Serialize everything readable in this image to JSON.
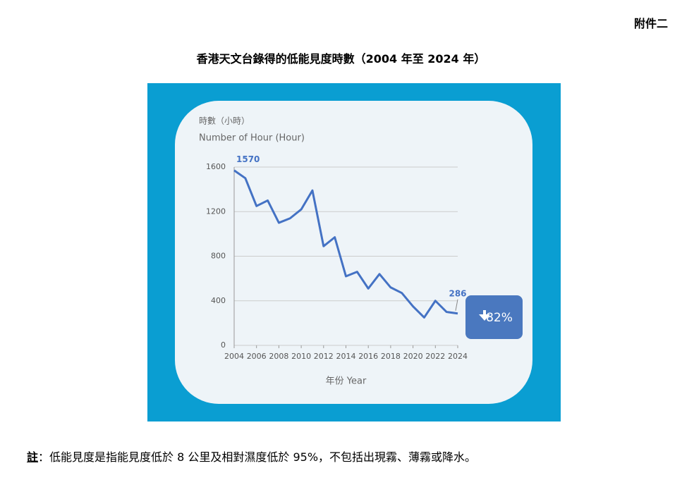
{
  "header": {
    "label": "附件二"
  },
  "title": "香港天文台錄得的低能見度時數（2004 年至 2024 年）",
  "chart_data": {
    "type": "line",
    "y_label_lines": [
      "時數（小時）",
      "Number of Hour (Hour)"
    ],
    "x_label": "年份 Year",
    "x": [
      2004,
      2005,
      2006,
      2007,
      2008,
      2009,
      2010,
      2011,
      2012,
      2013,
      2014,
      2015,
      2016,
      2017,
      2018,
      2019,
      2020,
      2021,
      2022,
      2023,
      2024
    ],
    "values": [
      1570,
      1500,
      1250,
      1300,
      1100,
      1140,
      1220,
      1390,
      890,
      970,
      620,
      660,
      510,
      640,
      520,
      470,
      350,
      250,
      400,
      300,
      286
    ],
    "color": "#4472c4",
    "xlim": [
      2004,
      2024
    ],
    "xticks": [
      2004,
      2006,
      2008,
      2010,
      2012,
      2014,
      2016,
      2018,
      2020,
      2022,
      2024
    ],
    "ylim": [
      0,
      1600
    ],
    "yticks": [
      0,
      400,
      800,
      1200,
      1600
    ],
    "grid": true,
    "annotation": "82%"
  },
  "note": {
    "label": "註",
    "text": "：低能見度是指能見度低於 8 公里及相對濕度低於 95%，不包括出現霧、薄霧或降水。"
  }
}
